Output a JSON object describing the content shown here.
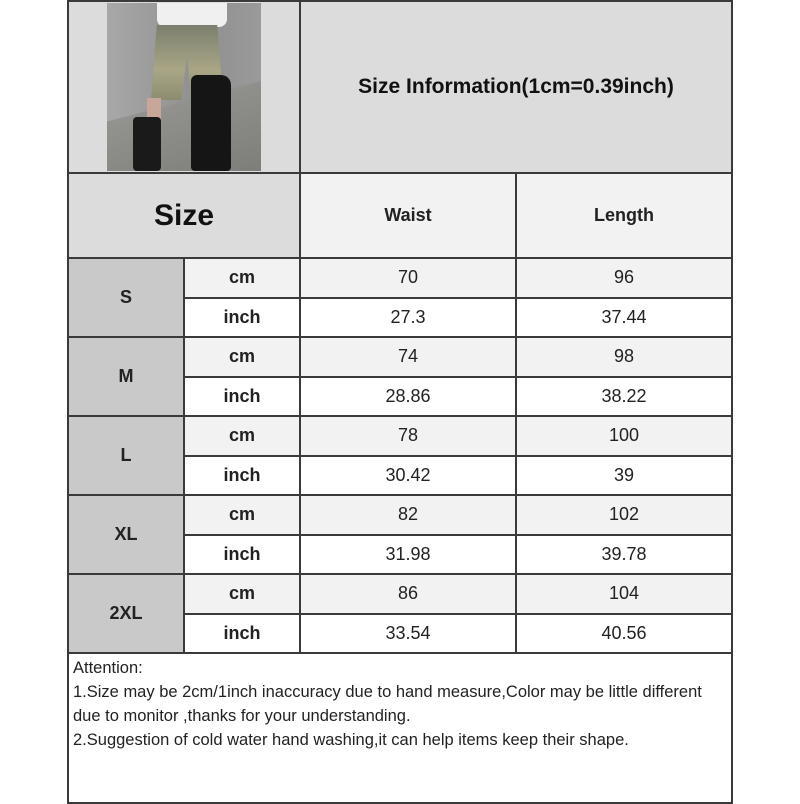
{
  "title": "Size Information(1cm=0.39inch)",
  "header": {
    "size": "Size",
    "columns": [
      "Waist",
      "Length"
    ]
  },
  "units": {
    "cm": "cm",
    "inch": "inch"
  },
  "rows": [
    {
      "size": "S",
      "cm": [
        "70",
        "96"
      ],
      "inch": [
        "27.3",
        "37.44"
      ]
    },
    {
      "size": "M",
      "cm": [
        "74",
        "98"
      ],
      "inch": [
        "28.86",
        "38.22"
      ]
    },
    {
      "size": "L",
      "cm": [
        "78",
        "100"
      ],
      "inch": [
        "30.42",
        "39"
      ]
    },
    {
      "size": "XL",
      "cm": [
        "82",
        "102"
      ],
      "inch": [
        "31.98",
        "39.78"
      ]
    },
    {
      "size": "2XL",
      "cm": [
        "86",
        "104"
      ],
      "inch": [
        "33.54",
        "40.56"
      ]
    }
  ],
  "attention": {
    "heading": "Attention:",
    "lines": [
      "1.Size may be 2cm/1inch inaccuracy due to hand measure,Color may be little different due to monitor ,thanks for your understanding.",
      "2.Suggestion of cold water hand washing,it can help items keep their shape."
    ]
  }
}
